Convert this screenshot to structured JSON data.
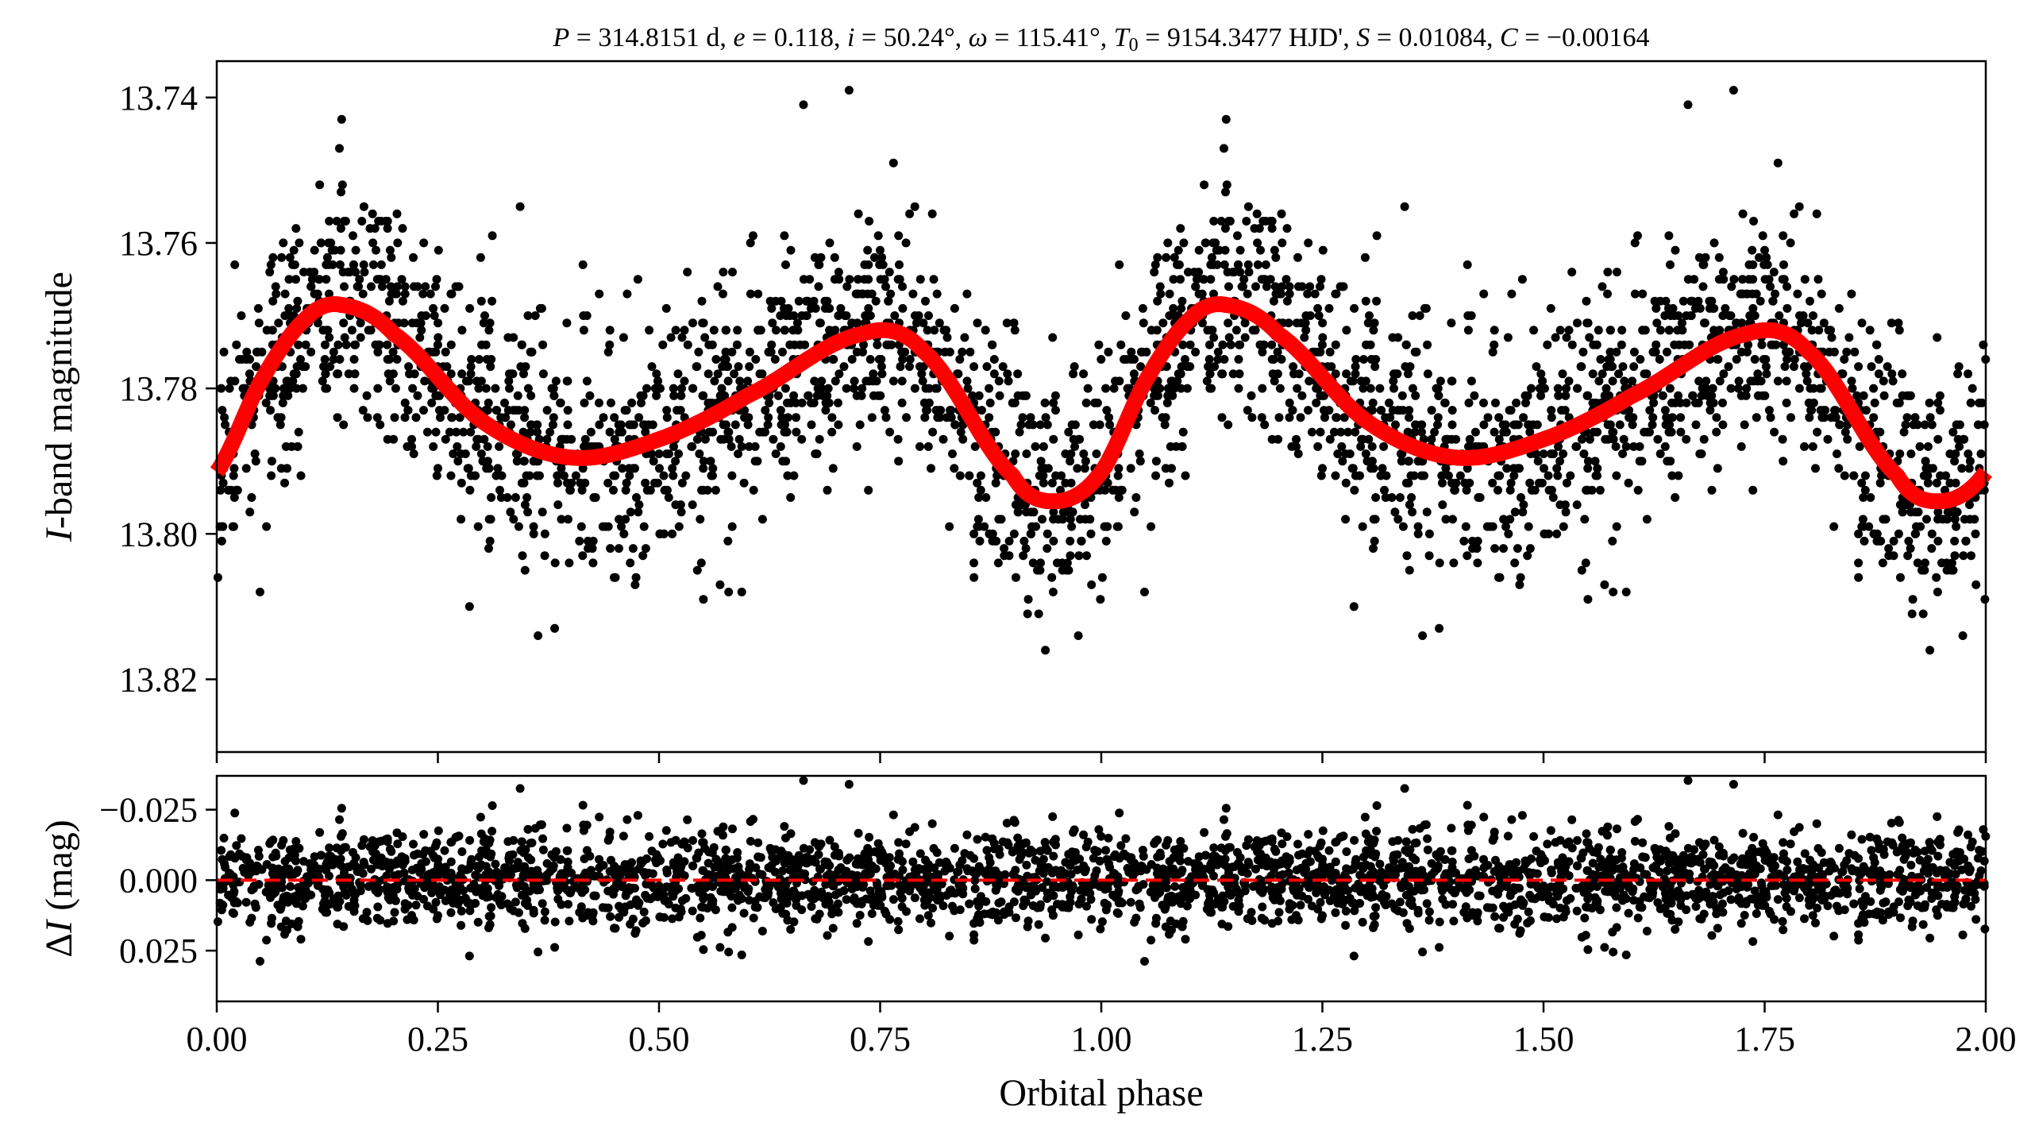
{
  "chart_data": [
    {
      "type": "scatter",
      "title": "P = 314.8151 d, e = 0.118, i = 50.24°, ω = 115.41°, T0 = 9154.3477 HJD', S = 0.01084, C = −0.00164",
      "title_parts": {
        "P": "314.8151 d",
        "e": "0.118",
        "i": "50.24°",
        "omega": "115.41°",
        "T0": "9154.3477 HJD'",
        "S": "0.01084",
        "C": "−0.00164"
      },
      "xlabel": "",
      "ylabel": "I-band magnitude",
      "ylabel_italic": "I",
      "ylabel_rest": "-band magnitude",
      "xlim": [
        0.0,
        2.0
      ],
      "ylim": [
        13.83,
        13.735
      ],
      "y_inverted": true,
      "grid": false,
      "yticks": [
        "13.74",
        "13.76",
        "13.78",
        "13.80",
        "13.82"
      ],
      "ytick_values": [
        13.74,
        13.76,
        13.78,
        13.8,
        13.82
      ],
      "xtick_values": [
        0.0,
        0.25,
        0.5,
        0.75,
        1.0,
        1.25,
        1.5,
        1.75,
        2.0
      ],
      "series": [
        {
          "kind": "points",
          "color": "#000000",
          "description": "phase-folded photometry repeated over two cycles",
          "model_offset_sigma": 0.0085
        },
        {
          "kind": "model_curve",
          "color": "#ff0000",
          "phase": [
            0.0,
            0.05,
            0.1,
            0.14,
            0.2,
            0.3,
            0.4,
            0.5,
            0.6,
            0.73,
            0.8,
            0.9,
            0.95,
            1.0
          ],
          "values": [
            13.7915,
            13.779,
            13.7705,
            13.7685,
            13.7725,
            13.7845,
            13.7895,
            13.787,
            13.781,
            13.7725,
            13.775,
            13.792,
            13.7955,
            13.7915
          ]
        }
      ]
    },
    {
      "type": "scatter",
      "xlabel": "Orbital phase",
      "ylabel": "ΔI (mag)",
      "ylabel_delta": "Δ",
      "ylabel_italic": "I",
      "ylabel_rest": " (mag)",
      "xlim": [
        0.0,
        2.0
      ],
      "ylim": [
        0.043,
        -0.037
      ],
      "y_inverted": true,
      "grid": false,
      "xticks": [
        "0.00",
        "0.25",
        "0.50",
        "0.75",
        "1.00",
        "1.25",
        "1.50",
        "1.75",
        "2.00"
      ],
      "xtick_values": [
        0.0,
        0.25,
        0.5,
        0.75,
        1.0,
        1.25,
        1.5,
        1.75,
        2.0
      ],
      "yticks": [
        "−0.025",
        "0.000",
        "0.025"
      ],
      "ytick_values": [
        -0.025,
        0.0,
        0.025
      ],
      "series": [
        {
          "kind": "residual_points",
          "color": "#000000",
          "sigma": 0.0085
        },
        {
          "kind": "zero_line",
          "color": "#ff0000",
          "style": "dashed",
          "value": 0.0
        }
      ]
    }
  ]
}
